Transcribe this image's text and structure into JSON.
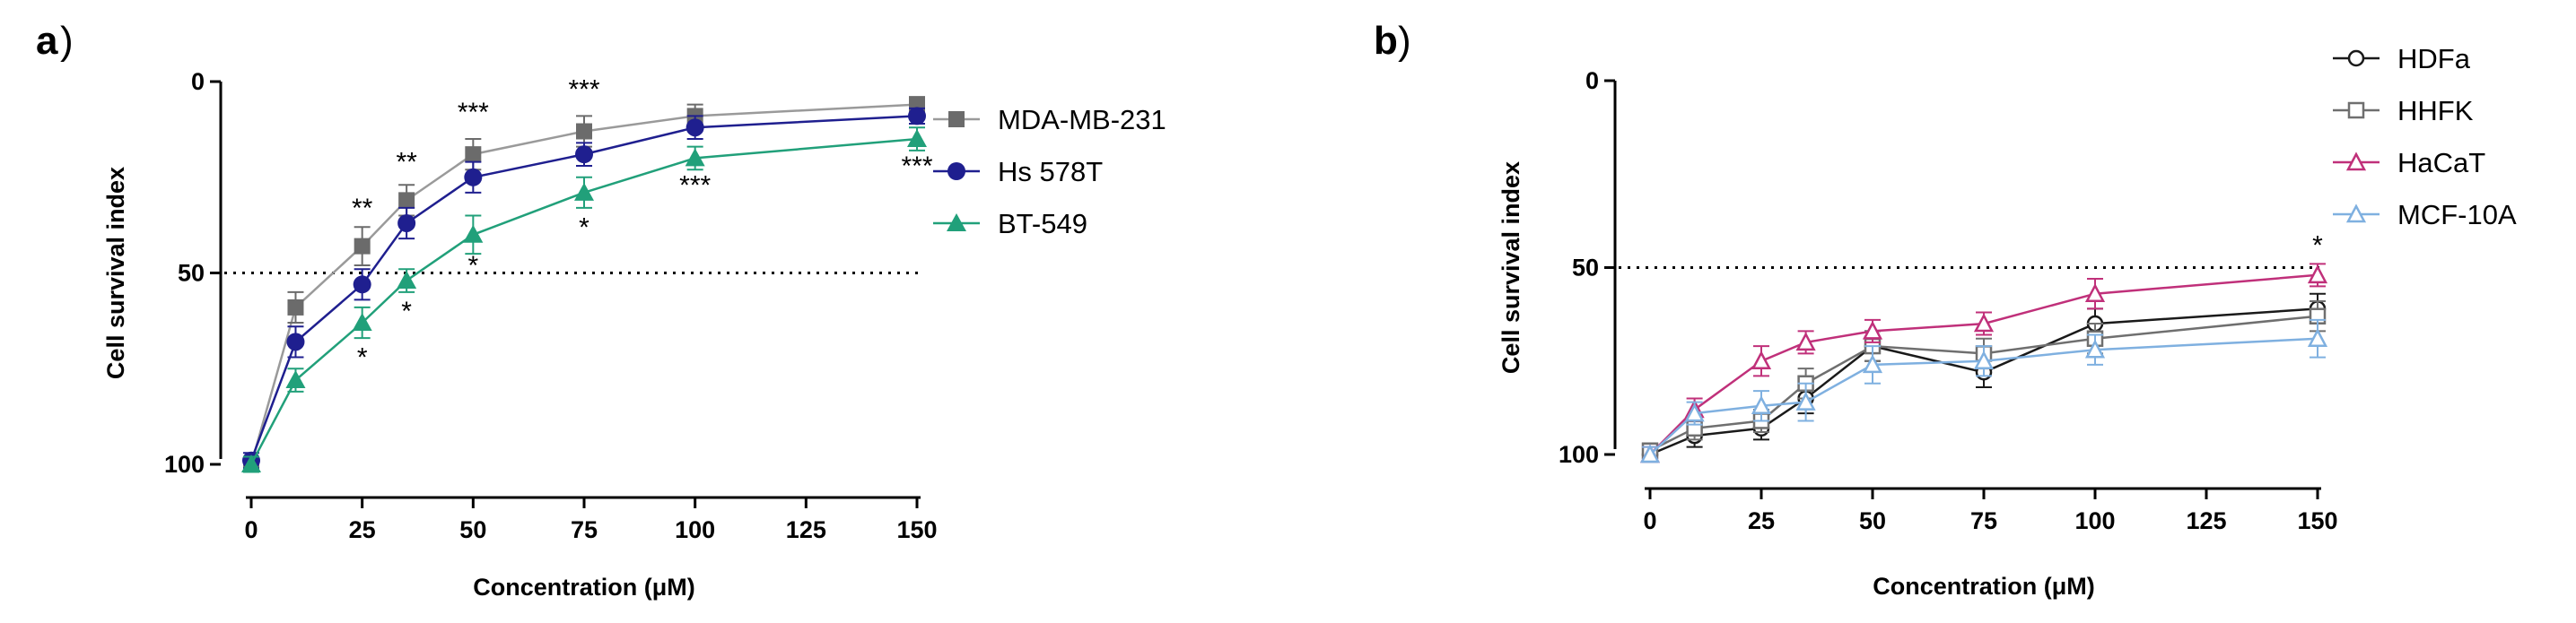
{
  "chart_data": [
    {
      "panel_label": "a",
      "type": "line",
      "xlabel": "Concentration (μM)",
      "ylabel": "Cell survival index",
      "xlim": [
        0,
        150
      ],
      "ylim": [
        0,
        100
      ],
      "x_ticks": [
        "0",
        "25",
        "50",
        "75",
        "100",
        "125",
        "150"
      ],
      "y_ticks": [
        "0",
        "50",
        "100"
      ],
      "reference_line": 50,
      "legend_position": "top-right",
      "x": [
        0,
        10,
        25,
        35,
        50,
        75,
        100,
        150
      ],
      "series": [
        {
          "name": "MDA-MB-231",
          "marker": "square",
          "color": "#6b6b6b",
          "line_color": "#9a9a9a",
          "values": [
            100,
            59,
            43,
            31,
            19,
            13,
            9,
            6
          ],
          "errors": [
            2,
            4,
            5,
            4,
            4,
            4,
            3,
            2
          ]
        },
        {
          "name": "Hs 578T",
          "marker": "circle",
          "color": "#1f1f8f",
          "line_color": "#1f1f8f",
          "values": [
            99,
            68,
            53,
            37,
            25,
            19,
            12,
            9
          ],
          "errors": [
            2,
            4,
            4,
            4,
            4,
            3,
            3,
            2
          ]
        },
        {
          "name": "BT-549",
          "marker": "triangle",
          "color": "#21a07a",
          "line_color": "#21a07a",
          "values": [
            100,
            78,
            63,
            52,
            40,
            29,
            20,
            15
          ],
          "errors": [
            2,
            3,
            4,
            3,
            5,
            4,
            3,
            3
          ]
        }
      ],
      "annotations": [
        {
          "x": 25,
          "y": 72,
          "text": "*"
        },
        {
          "x": 35,
          "y": 60,
          "text": "*"
        },
        {
          "x": 50,
          "y": 48,
          "text": "*"
        },
        {
          "x": 75,
          "y": 38,
          "text": "*"
        },
        {
          "x": 100,
          "y": 27,
          "text": "***"
        },
        {
          "x": 150,
          "y": 22,
          "text": "***"
        },
        {
          "x": 25,
          "y": 33,
          "text": "**"
        },
        {
          "x": 35,
          "y": 21,
          "text": "**"
        },
        {
          "x": 50,
          "y": 8,
          "text": "***"
        },
        {
          "x": 75,
          "y": 2,
          "text": "***"
        }
      ],
      "boxes": [
        25,
        35,
        50,
        75,
        100,
        150
      ]
    },
    {
      "panel_label": "b",
      "type": "line",
      "xlabel": "Concentration (μM)",
      "ylabel": "Cell survival index",
      "xlim": [
        0,
        150
      ],
      "ylim": [
        0,
        100
      ],
      "x_ticks": [
        "0",
        "25",
        "50",
        "75",
        "100",
        "125",
        "150"
      ],
      "y_ticks": [
        "0",
        "50",
        "100"
      ],
      "reference_line": 50,
      "legend_position": "top-right",
      "x": [
        0,
        10,
        25,
        35,
        50,
        75,
        100,
        150
      ],
      "series": [
        {
          "name": "HDFa",
          "marker": "open-circle",
          "color": "#1a1a1a",
          "values": [
            100,
            95,
            93,
            85,
            71,
            78,
            65,
            61
          ],
          "errors": [
            2,
            3,
            3,
            4,
            4,
            4,
            4,
            4
          ]
        },
        {
          "name": "HHFK",
          "marker": "open-square",
          "color": "#6f6f6f",
          "values": [
            99,
            93,
            91,
            81,
            71,
            73,
            69,
            63
          ],
          "errors": [
            2,
            3,
            3,
            4,
            4,
            4,
            4,
            4
          ]
        },
        {
          "name": "HaCaT",
          "marker": "open-triangle",
          "color": "#c0307a",
          "values": [
            100,
            88,
            75,
            70,
            67,
            65,
            57,
            52
          ],
          "errors": [
            2,
            3,
            4,
            3,
            3,
            3,
            4,
            3
          ]
        },
        {
          "name": "MCF-10A",
          "marker": "open-triangle",
          "color": "#7fb0e0",
          "values": [
            100,
            89,
            87,
            86,
            76,
            75,
            72,
            69
          ],
          "errors": [
            2,
            3,
            4,
            5,
            5,
            4,
            4,
            5
          ]
        }
      ],
      "annotations": [
        {
          "x": 150,
          "y": 44,
          "text": "*"
        }
      ]
    }
  ]
}
